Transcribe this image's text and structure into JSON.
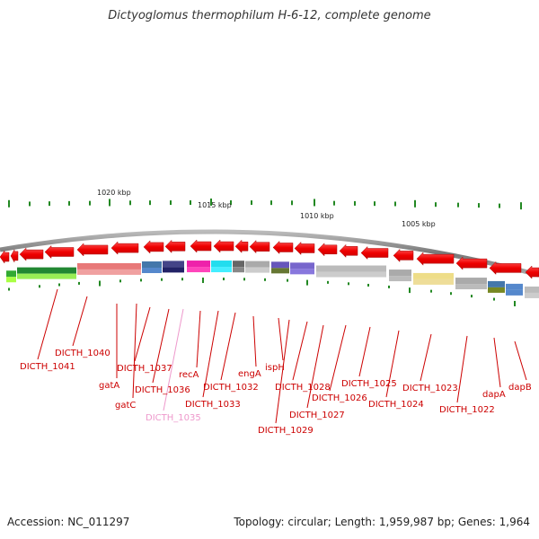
{
  "title": "Dictyoglomus thermophilum H-6-12, complete genome",
  "footer": {
    "accession": "Accession: NC_011297",
    "info": "Topology: circular; Length: 1,959,987 bp; Genes: 1,964"
  },
  "scale_labels": [
    "1020 kbp",
    "1015 kbp",
    "1010 kbp",
    "1005 kbp"
  ],
  "gene_labels": [
    {
      "text": "DICTH_1041",
      "color": "#cc0000"
    },
    {
      "text": "DICTH_1040",
      "color": "#cc0000"
    },
    {
      "text": "gatA",
      "color": "#cc0000"
    },
    {
      "text": "gatC",
      "color": "#cc0000"
    },
    {
      "text": "DICTH_1037",
      "color": "#cc0000"
    },
    {
      "text": "DICTH_1036",
      "color": "#cc0000"
    },
    {
      "text": "DICTH_1035",
      "color": "#ee99cc"
    },
    {
      "text": "recA",
      "color": "#cc0000"
    },
    {
      "text": "DICTH_1033",
      "color": "#cc0000"
    },
    {
      "text": "DICTH_1032",
      "color": "#cc0000"
    },
    {
      "text": "engA",
      "color": "#cc0000"
    },
    {
      "text": "ispH",
      "color": "#cc0000"
    },
    {
      "text": "DICTH_1029",
      "color": "#cc0000"
    },
    {
      "text": "DICTH_1028",
      "color": "#cc0000"
    },
    {
      "text": "DICTH_1027",
      "color": "#cc0000"
    },
    {
      "text": "DICTH_1026",
      "color": "#cc0000"
    },
    {
      "text": "DICTH_1025",
      "color": "#cc0000"
    },
    {
      "text": "DICTH_1024",
      "color": "#cc0000"
    },
    {
      "text": "DICTH_1023",
      "color": "#cc0000"
    },
    {
      "text": "DICTH_1022",
      "color": "#cc0000"
    },
    {
      "text": "dapA",
      "color": "#cc0000"
    },
    {
      "text": "dapB",
      "color": "#cc0000"
    }
  ],
  "colors": {
    "gene_arrow": "#ee0000",
    "backbone": "#888888",
    "tick": "#228822"
  }
}
